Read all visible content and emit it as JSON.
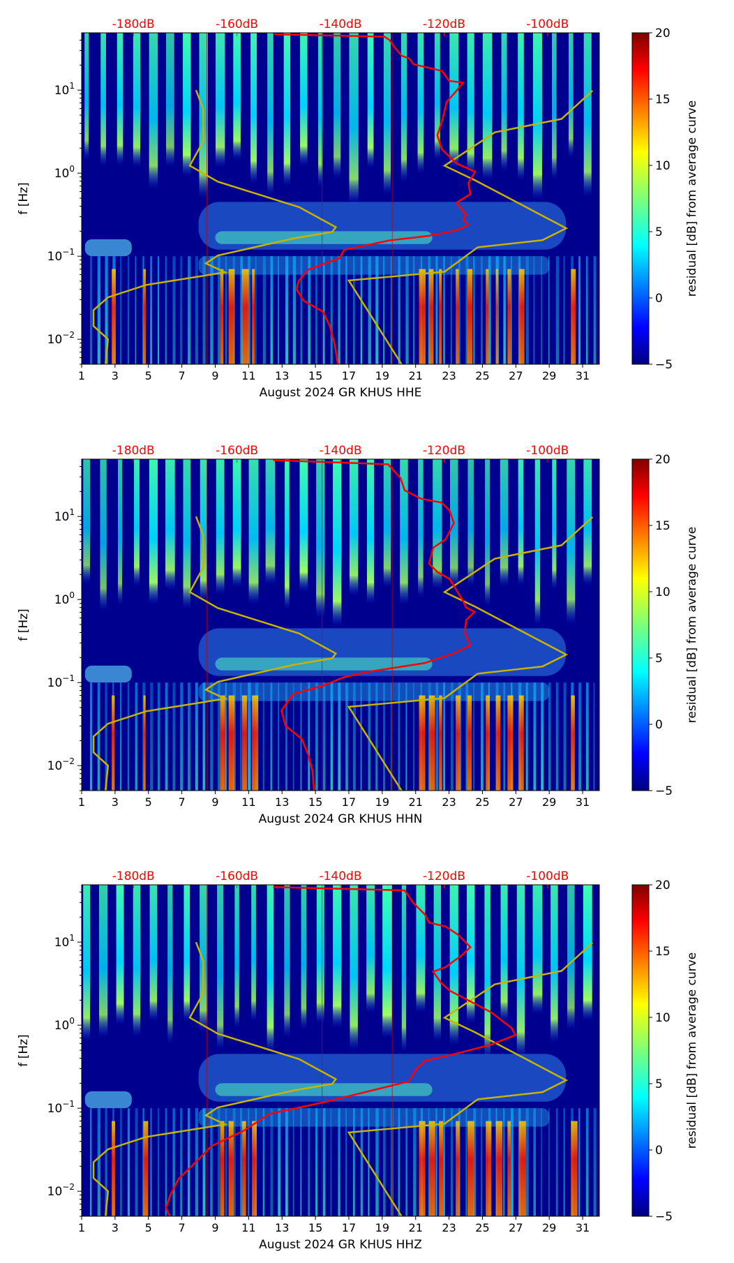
{
  "colors": {
    "red_curve": "#ff0000",
    "yellow_curve": "#c8b400",
    "top_label": "#ff0000",
    "background": "#00008f"
  },
  "shared": {
    "x_ticks": [
      "1",
      "3",
      "5",
      "7",
      "9",
      "11",
      "13",
      "15",
      "17",
      "19",
      "21",
      "23",
      "25",
      "27",
      "29",
      "31"
    ],
    "x_tick_values": [
      1,
      3,
      5,
      7,
      9,
      11,
      13,
      15,
      17,
      19,
      21,
      23,
      25,
      27,
      29,
      31
    ],
    "xlim_days": [
      1,
      32
    ],
    "top_ticks": [
      "-180dB",
      "-160dB",
      "-140dB",
      "-120dB",
      "-100dB"
    ],
    "top_tick_values": [
      -180,
      -160,
      -140,
      -120,
      -100
    ],
    "xlim_db": [
      -190,
      -90
    ],
    "y_ticks": [
      {
        "base": "10",
        "exp": "1",
        "value": 10
      },
      {
        "base": "10",
        "exp": "0",
        "value": 1
      },
      {
        "base": "10",
        "exp": "−1",
        "value": 0.1
      },
      {
        "base": "10",
        "exp": "−2",
        "value": 0.01
      }
    ],
    "ylim_hz": [
      0.005,
      49
    ],
    "ylabel": "f [Hz]",
    "colorbar": {
      "label": "residual [dB] from average curve",
      "ticks": [
        "20",
        "15",
        "10",
        "5",
        "0",
        "−5"
      ],
      "tick_values": [
        20,
        15,
        10,
        5,
        0,
        -5
      ],
      "range": [
        -5,
        20
      ],
      "colormap": "jet"
    },
    "yellow_curves_db_hz": [
      [
        [
          -167.9,
          10
        ],
        [
          -166.5,
          5.9
        ],
        [
          -166.5,
          2.44
        ],
        [
          -169.1,
          1.23
        ],
        [
          -163.7,
          0.79
        ],
        [
          -148.0,
          0.39
        ],
        [
          -140.9,
          0.224
        ],
        [
          -141.6,
          0.196
        ],
        [
          -149.0,
          0.164
        ],
        [
          -163.7,
          0.102
        ],
        [
          -166.0,
          0.082
        ],
        [
          -162.3,
          0.064
        ],
        [
          -177.6,
          0.045
        ],
        [
          -184.9,
          0.032
        ],
        [
          -187.7,
          0.0224
        ],
        [
          -187.7,
          0.0144
        ],
        [
          -184.9,
          0.01
        ],
        [
          -185.4,
          0.005
        ]
      ],
      [
        [
          -91.3,
          9.85
        ],
        [
          -97.3,
          4.5
        ],
        [
          -110.2,
          3.1
        ],
        [
          -119.9,
          1.23
        ],
        [
          -114.0,
          0.82
        ],
        [
          -96.4,
          0.217
        ],
        [
          -101.0,
          0.156
        ],
        [
          -113.5,
          0.128
        ],
        [
          -119.9,
          0.065
        ],
        [
          -138.4,
          0.051
        ],
        [
          -128.2,
          0.005
        ]
      ]
    ]
  },
  "chart_data": [
    {
      "type": "line",
      "title": "",
      "xlabel": "August 2024 GR KHUS  HHE",
      "ylabel": "f [Hz]",
      "red_curve_db_hz": [
        [
          -152.8,
          47
        ],
        [
          -131.5,
          44
        ],
        [
          -130.5,
          40
        ],
        [
          -129.6,
          33
        ],
        [
          -128.2,
          26
        ],
        [
          -126.7,
          24
        ],
        [
          -125.9,
          20.5
        ],
        [
          -120.4,
          17
        ],
        [
          -119,
          12.9
        ],
        [
          -116.3,
          12.3
        ],
        [
          -117.6,
          9.8
        ],
        [
          -119.5,
          7.2
        ],
        [
          -120.4,
          4.2
        ],
        [
          -121.3,
          2.85
        ],
        [
          -120.4,
          1.93
        ],
        [
          -117.6,
          1.31
        ],
        [
          -114,
          1.04
        ],
        [
          -115.3,
          0.76
        ],
        [
          -114.9,
          0.56
        ],
        [
          -117.6,
          0.44
        ],
        [
          -115.8,
          0.32
        ],
        [
          -116.3,
          0.278
        ],
        [
          -115.3,
          0.238
        ],
        [
          -117.6,
          0.204
        ],
        [
          -123.2,
          0.175
        ],
        [
          -130.5,
          0.155
        ],
        [
          -139.3,
          0.119
        ],
        [
          -140.2,
          0.094
        ],
        [
          -143.4,
          0.08
        ],
        [
          -146.2,
          0.069
        ],
        [
          -148.1,
          0.05
        ],
        [
          -148.5,
          0.04
        ],
        [
          -147.1,
          0.029
        ],
        [
          -143.4,
          0.0215
        ],
        [
          -142.1,
          0.0146
        ],
        [
          -141.1,
          0.0085
        ],
        [
          -140.5,
          0.005
        ]
      ]
    },
    {
      "type": "line",
      "title": "",
      "xlabel": "August 2024 GR KHUS  HHN",
      "ylabel": "f [Hz]",
      "red_curve_db_hz": [
        [
          -153.0,
          47.6
        ],
        [
          -130.8,
          42.5
        ],
        [
          -128.4,
          28.9
        ],
        [
          -127.6,
          20.6
        ],
        [
          -124.5,
          16.4
        ],
        [
          -120.5,
          14.7
        ],
        [
          -118.9,
          11.7
        ],
        [
          -118.1,
          8.3
        ],
        [
          -119.7,
          5.3
        ],
        [
          -122.1,
          4.2
        ],
        [
          -122.9,
          2.7
        ],
        [
          -121.3,
          2.15
        ],
        [
          -118.9,
          1.76
        ],
        [
          -116.5,
          1.0
        ],
        [
          -115.7,
          0.8
        ],
        [
          -114.1,
          0.71
        ],
        [
          -115.7,
          0.57
        ],
        [
          -116.0,
          0.4
        ],
        [
          -114.9,
          0.28
        ],
        [
          -118.1,
          0.225
        ],
        [
          -123.7,
          0.172
        ],
        [
          -134.8,
          0.134
        ],
        [
          -139.5,
          0.115
        ],
        [
          -143.5,
          0.091
        ],
        [
          -149.1,
          0.073
        ],
        [
          -151.4,
          0.046
        ],
        [
          -150.6,
          0.03
        ],
        [
          -147.5,
          0.021
        ],
        [
          -146.2,
          0.0134
        ],
        [
          -145.4,
          0.0085
        ],
        [
          -145.1,
          0.005
        ]
      ]
    },
    {
      "type": "line",
      "title": "",
      "xlabel": "August 2024 GR KHUS  HHZ",
      "ylabel": "f [Hz]",
      "red_curve_db_hz": [
        [
          -153.0,
          46
        ],
        [
          -127.6,
          42
        ],
        [
          -126.0,
          30
        ],
        [
          -123.7,
          21.5
        ],
        [
          -122.9,
          17.2
        ],
        [
          -119.7,
          15.4
        ],
        [
          -117.3,
          12.3
        ],
        [
          -114.9,
          8.7
        ],
        [
          -116.5,
          7.0
        ],
        [
          -119.7,
          5.0
        ],
        [
          -122.1,
          4.4
        ],
        [
          -120.5,
          3.2
        ],
        [
          -118.9,
          2.6
        ],
        [
          -115.7,
          2.05
        ],
        [
          -111.0,
          1.44
        ],
        [
          -107.0,
          0.93
        ],
        [
          -106.2,
          0.76
        ],
        [
          -111.0,
          0.58
        ],
        [
          -117.3,
          0.46
        ],
        [
          -123.7,
          0.37
        ],
        [
          -125.3,
          0.3
        ],
        [
          -126.8,
          0.21
        ],
        [
          -133.2,
          0.168
        ],
        [
          -142.7,
          0.12
        ],
        [
          -153.8,
          0.085
        ],
        [
          -158.6,
          0.054
        ],
        [
          -164.9,
          0.035
        ],
        [
          -168.1,
          0.022
        ],
        [
          -171.3,
          0.014
        ],
        [
          -172.9,
          0.0089
        ],
        [
          -173.7,
          0.0063
        ],
        [
          -172.9,
          0.0049
        ]
      ]
    }
  ]
}
